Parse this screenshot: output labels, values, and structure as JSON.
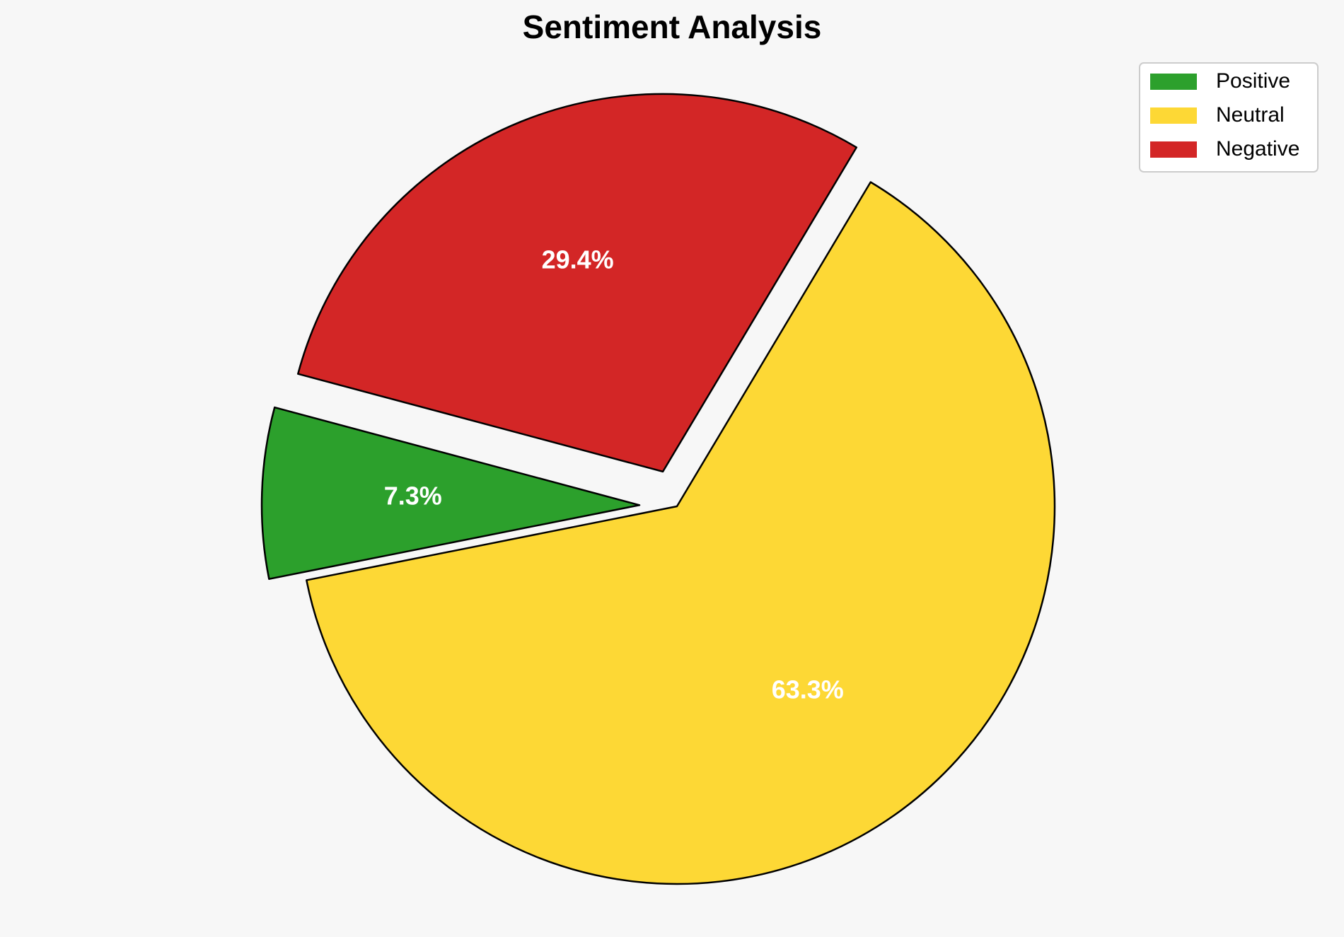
{
  "chart_data": {
    "type": "pie",
    "title": "Sentiment Analysis",
    "categories": [
      "Positive",
      "Neutral",
      "Negative"
    ],
    "values": [
      7.3,
      63.3,
      29.4
    ],
    "labels": [
      "7.3%",
      "63.3%",
      "29.4%"
    ],
    "colors": [
      "#2ca02c",
      "#fdd835",
      "#d32626"
    ],
    "exploded": [
      true,
      false,
      true
    ],
    "start_angle_deg": 165,
    "direction": "counterclockwise",
    "legend_position": "top-right",
    "edge_color": "#000000"
  }
}
